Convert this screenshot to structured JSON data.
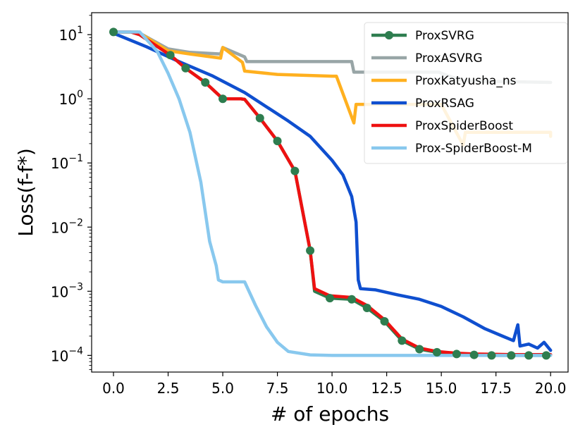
{
  "chart_data": {
    "type": "line",
    "title": "",
    "xlabel": "# of epochs",
    "ylabel": "Loss(f-f*)",
    "yscale": "log",
    "xlim": [
      -1.0,
      20.8
    ],
    "ylim": [
      5.5e-05,
      22
    ],
    "xticks": [
      0,
      2.5,
      5,
      7.5,
      10,
      12.5,
      15,
      17.5,
      20
    ],
    "xtick_labels": [
      "0.0",
      "2.5",
      "5.0",
      "7.5",
      "10.0",
      "12.5",
      "15.0",
      "17.5",
      "20.0"
    ],
    "yticks": [
      {
        "value": 10,
        "base": "10",
        "exp": "1"
      },
      {
        "value": 1,
        "base": "10",
        "exp": "0"
      },
      {
        "value": 0.1,
        "base": "10",
        "exp": "−1"
      },
      {
        "value": 0.01,
        "base": "10",
        "exp": "−2"
      },
      {
        "value": 0.001,
        "base": "10",
        "exp": "−3"
      },
      {
        "value": 0.0001,
        "base": "10",
        "exp": "−4"
      }
    ],
    "legend_position": "top-right",
    "series": [
      {
        "name": "ProxSVRG",
        "color": "#2e7d4f",
        "marker": "circle",
        "points": [
          [
            0,
            11
          ],
          [
            0.8,
            11
          ],
          [
            1.2,
            10
          ],
          [
            2.6,
            4.8
          ],
          [
            3.3,
            3.0
          ],
          [
            4.2,
            1.8
          ],
          [
            5.0,
            1.0
          ],
          [
            5.8,
            1.0
          ],
          [
            6.0,
            0.98
          ],
          [
            6.7,
            0.5
          ],
          [
            7.5,
            0.22
          ],
          [
            8.3,
            0.075
          ],
          [
            9.0,
            0.0043
          ],
          [
            9.2,
            0.001
          ],
          [
            9.9,
            0.00078
          ],
          [
            10.9,
            0.00075
          ],
          [
            11.6,
            0.00055
          ],
          [
            12.4,
            0.00034
          ],
          [
            13.2,
            0.00017
          ],
          [
            14.0,
            0.000125
          ],
          [
            14.8,
            0.000112
          ],
          [
            15.7,
            0.000105
          ],
          [
            16.5,
            0.000102
          ],
          [
            17.3,
            0.0001
          ],
          [
            18.2,
            0.0001
          ],
          [
            19.0,
            0.0001
          ],
          [
            19.8,
            0.0001
          ]
        ],
        "marker_points": [
          [
            0,
            11
          ],
          [
            2.6,
            4.8
          ],
          [
            3.3,
            3.0
          ],
          [
            4.2,
            1.8
          ],
          [
            5.0,
            1.0
          ],
          [
            6.7,
            0.5
          ],
          [
            7.5,
            0.22
          ],
          [
            8.3,
            0.075
          ],
          [
            9.0,
            0.0043
          ],
          [
            9.9,
            0.00078
          ],
          [
            10.9,
            0.00075
          ],
          [
            11.6,
            0.00055
          ],
          [
            12.4,
            0.00034
          ],
          [
            13.2,
            0.00017
          ],
          [
            14.0,
            0.000125
          ],
          [
            14.8,
            0.000112
          ],
          [
            15.7,
            0.000105
          ],
          [
            16.5,
            0.000102
          ],
          [
            17.3,
            0.0001
          ],
          [
            18.2,
            0.0001
          ],
          [
            19.0,
            0.0001
          ],
          [
            19.8,
            0.0001
          ]
        ]
      },
      {
        "name": "ProxASVRG",
        "color": "#98a5a6",
        "marker": "none",
        "points": [
          [
            0,
            11
          ],
          [
            1.1,
            11
          ],
          [
            2.5,
            6
          ],
          [
            3.5,
            5.3
          ],
          [
            4.9,
            5.0
          ],
          [
            5.0,
            6.3
          ],
          [
            6.0,
            4.5
          ],
          [
            6.1,
            3.8
          ],
          [
            9.0,
            3.8
          ],
          [
            10.9,
            3.8
          ],
          [
            11.0,
            2.6
          ],
          [
            14.9,
            2.6
          ],
          [
            15.0,
            2.5
          ],
          [
            16.0,
            1.9
          ],
          [
            20.0,
            1.8
          ]
        ]
      },
      {
        "name": "ProxKatyusha_ns",
        "color": "#ffb01f",
        "marker": "none",
        "points": [
          [
            0,
            11
          ],
          [
            1.1,
            11
          ],
          [
            2.5,
            5.6
          ],
          [
            3.5,
            5.0
          ],
          [
            4.9,
            4.3
          ],
          [
            5.0,
            6.3
          ],
          [
            5.9,
            3.7
          ],
          [
            6.0,
            2.7
          ],
          [
            7.5,
            2.4
          ],
          [
            10.0,
            2.25
          ],
          [
            10.2,
            2.25
          ],
          [
            11.0,
            0.42
          ],
          [
            11.1,
            0.82
          ],
          [
            15.0,
            0.82
          ],
          [
            16.0,
            0.19
          ],
          [
            16.1,
            0.3
          ],
          [
            20.0,
            0.3
          ],
          [
            20.0,
            0.26
          ]
        ]
      },
      {
        "name": "ProxRSAG",
        "color": "#0f4fcf",
        "marker": "none",
        "points": [
          [
            0,
            10.5
          ],
          [
            1.5,
            6.5
          ],
          [
            3,
            3.8
          ],
          [
            4.5,
            2.3
          ],
          [
            6,
            1.25
          ],
          [
            7,
            0.75
          ],
          [
            8,
            0.45
          ],
          [
            9,
            0.26
          ],
          [
            10,
            0.11
          ],
          [
            10.5,
            0.065
          ],
          [
            10.9,
            0.03
          ],
          [
            11.1,
            0.012
          ],
          [
            11.2,
            0.0015
          ],
          [
            11.3,
            0.0011
          ],
          [
            12,
            0.00105
          ],
          [
            13,
            0.00088
          ],
          [
            14,
            0.00075
          ],
          [
            15,
            0.00058
          ],
          [
            16,
            0.0004
          ],
          [
            17,
            0.00026
          ],
          [
            17.8,
            0.0002
          ],
          [
            18.3,
            0.00017
          ],
          [
            18.5,
            0.0003
          ],
          [
            18.6,
            0.00014
          ],
          [
            19.0,
            0.00015
          ],
          [
            19.4,
            0.00013
          ],
          [
            19.7,
            0.00016
          ],
          [
            20.0,
            0.00012
          ]
        ]
      },
      {
        "name": "ProxSpiderBoost",
        "color": "#ee1111",
        "marker": "none",
        "points": [
          [
            0,
            11
          ],
          [
            0.8,
            11
          ],
          [
            1.2,
            10
          ],
          [
            2.6,
            4.8
          ],
          [
            3.3,
            3.0
          ],
          [
            4.2,
            1.8
          ],
          [
            5.0,
            1.0
          ],
          [
            5.8,
            1.0
          ],
          [
            6.0,
            0.98
          ],
          [
            6.7,
            0.5
          ],
          [
            7.5,
            0.22
          ],
          [
            8.3,
            0.075
          ],
          [
            9.0,
            0.0043
          ],
          [
            9.2,
            0.0011
          ],
          [
            9.9,
            0.00085
          ],
          [
            10.9,
            0.0008
          ],
          [
            11.6,
            0.0006
          ],
          [
            12.4,
            0.00036
          ],
          [
            13.2,
            0.00018
          ],
          [
            14.0,
            0.00013
          ],
          [
            14.8,
            0.000115
          ],
          [
            15.7,
            0.000108
          ],
          [
            16.5,
            0.000105
          ],
          [
            17.3,
            0.000104
          ],
          [
            18.2,
            0.000103
          ],
          [
            19.0,
            0.000103
          ],
          [
            19.8,
            0.000103
          ],
          [
            20.0,
            0.000103
          ]
        ]
      },
      {
        "name": "Prox-SpiderBoost-M",
        "color": "#88c8ee",
        "marker": "none",
        "points": [
          [
            0,
            11
          ],
          [
            1.2,
            11
          ],
          [
            2,
            5.5
          ],
          [
            2.5,
            2.5
          ],
          [
            3,
            1.0
          ],
          [
            3.5,
            0.3
          ],
          [
            4,
            0.05
          ],
          [
            4.4,
            0.006
          ],
          [
            4.7,
            0.0025
          ],
          [
            4.8,
            0.0015
          ],
          [
            5.0,
            0.0014
          ],
          [
            6.0,
            0.0014
          ],
          [
            6.5,
            0.0006
          ],
          [
            7.0,
            0.00028
          ],
          [
            7.5,
            0.00016
          ],
          [
            8.0,
            0.000115
          ],
          [
            9.0,
            0.000102
          ],
          [
            10,
            0.0001
          ],
          [
            20,
            0.0001
          ]
        ]
      }
    ]
  }
}
